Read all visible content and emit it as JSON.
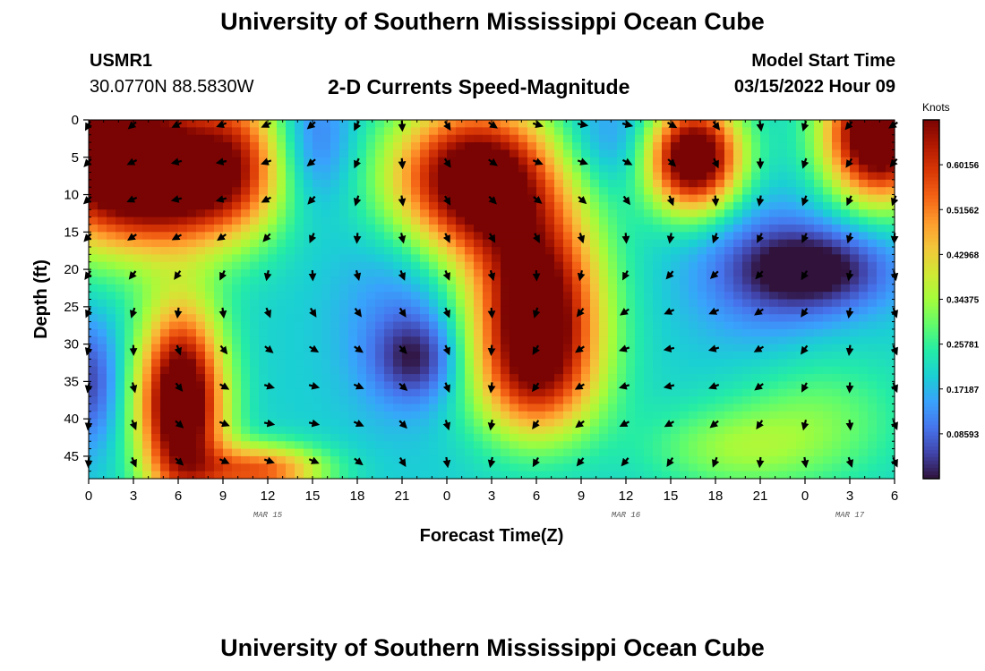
{
  "page": {
    "title": "University of Southern Mississippi Ocean Cube",
    "station_id": "USMR1",
    "station_coords": "30.0770N  88.5830W",
    "product": "2-D Currents Speed-Magnitude",
    "model_start_label": "Model Start Time",
    "model_start_value": "03/15/2022 Hour 09",
    "footer_title": "University of Southern Mississippi Ocean Cube"
  },
  "colors": {
    "scale": [
      "#30123b",
      "#4145ab",
      "#4675ed",
      "#39a2fc",
      "#1bcfd4",
      "#24eca6",
      "#61fc6c",
      "#a4fc3b",
      "#d1e834",
      "#f3c63a",
      "#fe9b2d",
      "#f36315",
      "#d93806",
      "#b11901",
      "#7a0403"
    ],
    "arrow": "#000000"
  },
  "chart_data": {
    "type": "heatmap",
    "title": "2-D Currents Speed-Magnitude",
    "xlabel": "Forecast Time(Z)",
    "ylabel": "Depth (ft)",
    "x_hours_from_start": [
      0,
      3,
      6,
      9,
      12,
      15,
      18,
      21,
      24,
      27,
      30,
      33,
      36,
      39,
      42,
      45,
      48,
      51,
      54
    ],
    "x_tick_labels": [
      "0",
      "3",
      "6",
      "9",
      "12",
      "15",
      "18",
      "21",
      "0",
      "3",
      "6",
      "9",
      "12",
      "15",
      "18",
      "21",
      "0",
      "3",
      "6"
    ],
    "date_labels": [
      {
        "text": "MAR 15",
        "hour": 12
      },
      {
        "text": "MAR 16",
        "hour": 36
      },
      {
        "text": "MAR 17",
        "hour": 51
      }
    ],
    "xlim": [
      0,
      54
    ],
    "y_ticks": [
      0,
      5,
      10,
      15,
      20,
      25,
      30,
      35,
      40,
      45
    ],
    "y_tick_labels": [
      "0",
      "5",
      "10",
      "15",
      "20",
      "25",
      "30",
      "35",
      "40",
      "45"
    ],
    "ylim": [
      0,
      48
    ],
    "colorbar": {
      "label": "Knots",
      "tick_labels": [
        "0.60156",
        "0.51562",
        "0.42968",
        "0.34375",
        "0.25781",
        "0.17187",
        "0.08593"
      ],
      "tick_values": [
        0.60156,
        0.51562,
        0.42968,
        0.34375,
        0.25781,
        0.17187,
        0.08593
      ],
      "range": [
        0,
        0.6875
      ]
    },
    "vector_depths": [
      0,
      5,
      10,
      15,
      20,
      25,
      30,
      35,
      40,
      45
    ],
    "speed_blobs_knots": [
      {
        "hour": 2.0,
        "depth": 5,
        "sx": 4.5,
        "sy": 8,
        "amp": 0.62
      },
      {
        "hour": 6.5,
        "depth": 10,
        "sx": 3.5,
        "sy": 5,
        "amp": 0.2
      },
      {
        "hour": 10,
        "depth": 5,
        "sx": 2.5,
        "sy": 7,
        "amp": 0.28
      },
      {
        "hour": 6.2,
        "depth": 38,
        "sx": 2.0,
        "sy": 9,
        "amp": 0.62
      },
      {
        "hour": 11.5,
        "depth": 47,
        "sx": 3.0,
        "sy": 2.5,
        "amp": 0.35
      },
      {
        "hour": 26,
        "depth": 8,
        "sx": 4.0,
        "sy": 7,
        "amp": 0.6
      },
      {
        "hour": 30,
        "depth": 24,
        "sx": 3.0,
        "sy": 8,
        "amp": 0.52
      },
      {
        "hour": 30,
        "depth": 35,
        "sx": 3.0,
        "sy": 6,
        "amp": 0.3
      },
      {
        "hour": 40.5,
        "depth": 5,
        "sx": 2.2,
        "sy": 5,
        "amp": 0.62
      },
      {
        "hour": 53,
        "depth": 2,
        "sx": 2.5,
        "sy": 6,
        "amp": 0.65
      },
      {
        "hour": 43,
        "depth": 44,
        "sx": 4.0,
        "sy": 4,
        "amp": 0.12
      },
      {
        "hour": 49,
        "depth": 40,
        "sx": 4.0,
        "sy": 6,
        "amp": 0.1
      },
      {
        "hour": 15,
        "depth": 3,
        "sx": 2.0,
        "sy": 6,
        "amp": -0.12
      },
      {
        "hour": 21,
        "depth": 25,
        "sx": 3.0,
        "sy": 10,
        "amp": -0.08
      },
      {
        "hour": 22,
        "depth": 32,
        "sx": 2.0,
        "sy": 4,
        "amp": -0.15
      },
      {
        "hour": 49,
        "depth": 20,
        "sx": 3.5,
        "sy": 4,
        "amp": -0.2
      },
      {
        "hour": 45,
        "depth": 20,
        "sx": 3.5,
        "sy": 7,
        "amp": -0.1
      },
      {
        "hour": 35,
        "depth": 3,
        "sx": 3.0,
        "sy": 5,
        "amp": -0.1
      },
      {
        "hour": 0,
        "depth": 35,
        "sx": 1.5,
        "sy": 6,
        "amp": -0.15
      }
    ],
    "speed_base_knots": 0.2
  }
}
